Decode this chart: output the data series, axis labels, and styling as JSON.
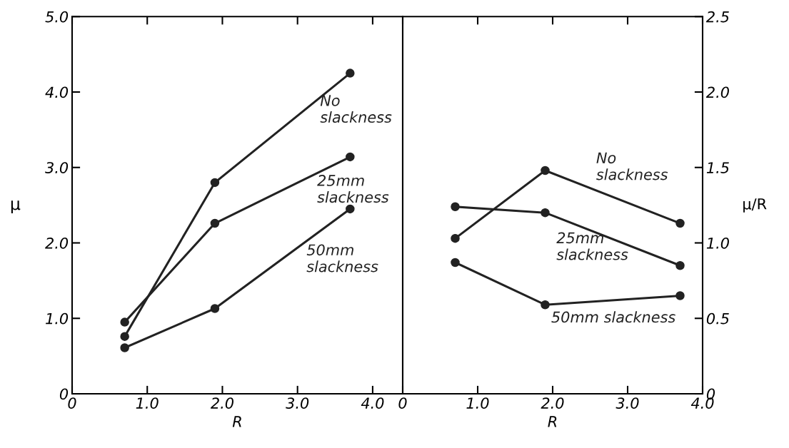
{
  "chart_data": [
    {
      "type": "line",
      "xlabel": "R",
      "ylabel": "μ",
      "x": [
        0.7,
        1.9,
        3.7
      ],
      "marker": "circle",
      "grid": false,
      "legend": false,
      "xlim": [
        0,
        4.4
      ],
      "xticks": [
        0,
        {
          "value": 1,
          "label": "1.0"
        },
        {
          "value": 2,
          "label": "2.0"
        },
        {
          "value": 3,
          "label": "3.0"
        },
        {
          "value": 4,
          "label": "4.0"
        }
      ],
      "ylim": [
        0,
        5
      ],
      "yticks": [
        0,
        {
          "value": 1,
          "label": "1.0"
        },
        {
          "value": 2,
          "label": "2.0"
        },
        {
          "value": 3,
          "label": "3.0"
        },
        {
          "value": 4,
          "label": "4.0"
        },
        {
          "value": 5,
          "label": "5.0"
        }
      ],
      "series": [
        {
          "name": "No\nslackness",
          "color": "#222222",
          "values": [
            0.76,
            2.8,
            4.25
          ]
        },
        {
          "name": "25mm\nslackness",
          "color": "#222222",
          "values": [
            0.95,
            2.26,
            3.14
          ]
        },
        {
          "name": "50mm\nslackness",
          "color": "#222222",
          "values": [
            0.61,
            1.13,
            2.45
          ]
        }
      ]
    },
    {
      "type": "line",
      "xlabel": "R",
      "y2label": "μ/R",
      "x": [
        0.7,
        1.9,
        3.7
      ],
      "marker": "circle",
      "grid": false,
      "legend": false,
      "xlim": [
        0,
        4
      ],
      "xticks": [
        0,
        {
          "value": 1,
          "label": "1.0"
        },
        {
          "value": 2,
          "label": "2.0"
        },
        {
          "value": 3,
          "label": "3.0"
        },
        {
          "value": 4,
          "label": "4.0"
        }
      ],
      "y2lim": [
        0,
        2.5
      ],
      "y2ticks": [
        0,
        0.5,
        {
          "value": 1,
          "label": "1.0"
        },
        1.5,
        {
          "value": 2,
          "label": "2.0"
        },
        2.5
      ],
      "series": [
        {
          "name": "No\nslackness",
          "axis": "y2",
          "color": "#222222",
          "values": [
            1.03,
            1.48,
            1.13
          ]
        },
        {
          "name": "25mm\nslackness",
          "axis": "y2",
          "color": "#222222",
          "values": [
            1.24,
            1.2,
            0.85
          ]
        },
        {
          "name": "50mm slackness",
          "axis": "y2",
          "color": "#222222",
          "values": [
            0.87,
            0.59,
            0.65
          ]
        }
      ]
    }
  ]
}
